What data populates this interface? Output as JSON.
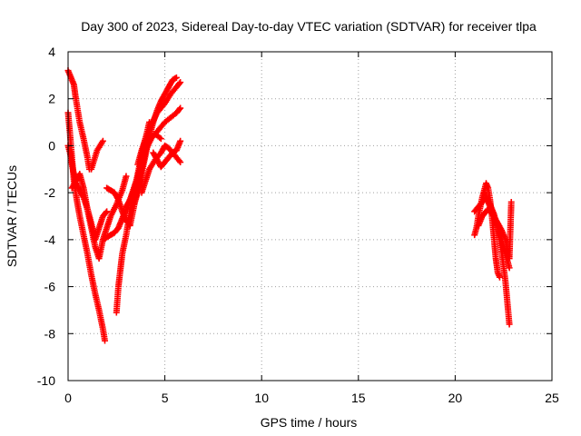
{
  "chart_data": {
    "type": "scatter",
    "title": "Day 300 of 2023, Sidereal Day-to-day VTEC variation (SDTVAR) for receiver tlpa",
    "xlabel": "GPS time / hours",
    "ylabel": "SDTVAR / TECUs",
    "xlim": [
      0,
      25
    ],
    "ylim": [
      -10,
      4
    ],
    "xticks": [
      "0",
      "5",
      "10",
      "15",
      "20",
      "25"
    ],
    "yticks": [
      "4",
      "2",
      "0",
      "-2",
      "-4",
      "-6",
      "-8",
      "-10"
    ],
    "grid": true,
    "marker": "+",
    "color": "#ff0000",
    "series": [
      {
        "x": [
          0.0,
          0.1,
          0.2,
          0.3,
          0.45,
          0.6,
          0.8,
          1.0,
          1.2,
          1.4,
          1.6,
          1.8,
          1.9
        ],
        "y": [
          1.4,
          0.5,
          -0.5,
          -1.5,
          -2.3,
          -3.0,
          -3.8,
          -4.6,
          -5.5,
          -6.3,
          -7.0,
          -7.8,
          -8.3
        ]
      },
      {
        "x": [
          0.0,
          0.1,
          0.2,
          0.3,
          0.4,
          0.5,
          0.6,
          0.8,
          1.0,
          1.1,
          1.2,
          1.5,
          1.8
        ],
        "y": [
          3.2,
          3.0,
          2.8,
          2.6,
          2.0,
          1.5,
          1.0,
          0.3,
          -0.5,
          -1.0,
          -1.0,
          -0.2,
          0.2
        ]
      },
      {
        "x": [
          0.0,
          0.1,
          0.2,
          0.3,
          0.4,
          0.6,
          0.8,
          1.0,
          1.2,
          1.4,
          1.6,
          1.8,
          2.0
        ],
        "y": [
          0.0,
          -0.3,
          -0.8,
          -1.2,
          -1.6,
          -1.9,
          -2.2,
          -2.7,
          -3.3,
          -4.0,
          -3.5,
          -3.0,
          -2.8
        ]
      },
      {
        "x": [
          0.2,
          0.4,
          0.6,
          0.8,
          1.0,
          1.2,
          1.4,
          1.6,
          1.8,
          2.0,
          2.2,
          2.5,
          2.8,
          3.0
        ],
        "y": [
          -1.8,
          -1.5,
          -1.2,
          -1.8,
          -2.7,
          -3.5,
          -4.3,
          -4.8,
          -4.0,
          -3.5,
          -3.0,
          -2.5,
          -1.9,
          -1.3
        ]
      },
      {
        "x": [
          1.8,
          2.0,
          2.2,
          2.4,
          2.6,
          2.8,
          3.0,
          3.2,
          3.4,
          3.6,
          3.8
        ],
        "y": [
          -4.0,
          -3.9,
          -3.8,
          -3.7,
          -3.5,
          -3.1,
          -2.7,
          -2.3,
          -1.9,
          -1.5,
          -1.0
        ]
      },
      {
        "x": [
          2.5,
          2.6,
          2.7,
          2.8,
          3.0,
          3.2,
          3.4,
          3.6,
          3.8,
          4.0,
          4.2
        ],
        "y": [
          -7.1,
          -6.0,
          -5.3,
          -4.6,
          -3.8,
          -2.8,
          -2.0,
          -1.2,
          -0.4,
          0.3,
          1.0
        ]
      },
      {
        "x": [
          2.0,
          2.2,
          2.4,
          2.6,
          2.8,
          3.0,
          3.2,
          3.4,
          3.6,
          3.8,
          4.0,
          4.2,
          4.5,
          4.8
        ],
        "y": [
          -1.8,
          -1.9,
          -2.0,
          -2.3,
          -2.8,
          -3.2,
          -3.4,
          -2.6,
          -1.8,
          -1.0,
          -0.3,
          0.3,
          0.5,
          0.3
        ]
      },
      {
        "x": [
          3.0,
          3.2,
          3.4,
          3.6,
          3.8,
          4.0,
          4.3,
          4.6,
          5.0,
          5.3,
          5.6,
          5.8
        ],
        "y": [
          -2.6,
          -2.3,
          -1.8,
          -1.3,
          -0.7,
          -0.2,
          0.3,
          0.6,
          1.0,
          1.2,
          1.4,
          1.6
        ]
      },
      {
        "x": [
          3.6,
          3.8,
          4.0,
          4.3,
          4.6,
          5.0,
          5.3,
          5.6,
          5.8
        ],
        "y": [
          -0.8,
          -0.2,
          0.3,
          0.9,
          1.4,
          1.8,
          2.2,
          2.5,
          2.7
        ]
      },
      {
        "x": [
          3.4,
          3.6,
          3.8,
          4.0,
          4.2,
          4.4,
          4.6,
          4.8,
          5.0,
          5.2,
          5.4,
          5.6
        ],
        "y": [
          -2.5,
          -2.0,
          -1.2,
          -0.4,
          0.4,
          1.0,
          1.5,
          1.9,
          2.2,
          2.5,
          2.8,
          2.9
        ]
      },
      {
        "x": [
          4.4,
          4.6,
          4.8,
          5.0,
          5.2,
          5.4,
          5.6,
          5.8
        ],
        "y": [
          -0.3,
          -0.6,
          -0.9,
          -0.7,
          -0.5,
          -0.3,
          -0.2,
          0.2
        ]
      },
      {
        "x": [
          3.8,
          4.0,
          4.2,
          4.5,
          4.8,
          5.0,
          5.2,
          5.5,
          5.8
        ],
        "y": [
          -2.0,
          -1.5,
          -1.0,
          -0.6,
          -0.3,
          0.0,
          -0.1,
          -0.4,
          -0.7
        ]
      },
      {
        "x": [
          21.0,
          21.1,
          21.2,
          21.3,
          21.4,
          21.5,
          21.6,
          21.7,
          21.8,
          21.9,
          22.0,
          22.1,
          22.2,
          22.3
        ],
        "y": [
          -3.8,
          -3.5,
          -3.0,
          -2.6,
          -2.2,
          -1.9,
          -1.6,
          -1.8,
          -2.3,
          -3.0,
          -3.9,
          -4.8,
          -5.4,
          -5.6
        ]
      },
      {
        "x": [
          21.0,
          21.2,
          21.4,
          21.6,
          21.8,
          22.0,
          22.2,
          22.4,
          22.6,
          22.8
        ],
        "y": [
          -2.8,
          -2.6,
          -2.4,
          -2.2,
          -2.5,
          -2.9,
          -3.5,
          -4.5,
          -5.8,
          -7.6
        ]
      },
      {
        "x": [
          21.2,
          21.4,
          21.6,
          21.7,
          21.8,
          22.0,
          22.2,
          22.4,
          22.6,
          22.8,
          22.9
        ],
        "y": [
          -3.4,
          -3.0,
          -2.8,
          -2.7,
          -2.8,
          -3.0,
          -3.3,
          -3.6,
          -4.0,
          -4.8,
          -2.4
        ]
      },
      {
        "x": [
          21.5,
          21.6,
          21.8,
          22.0,
          22.2,
          22.4,
          22.6,
          22.8
        ],
        "y": [
          -2.0,
          -2.2,
          -2.6,
          -3.0,
          -3.5,
          -4.0,
          -4.6,
          -5.2
        ]
      }
    ]
  }
}
